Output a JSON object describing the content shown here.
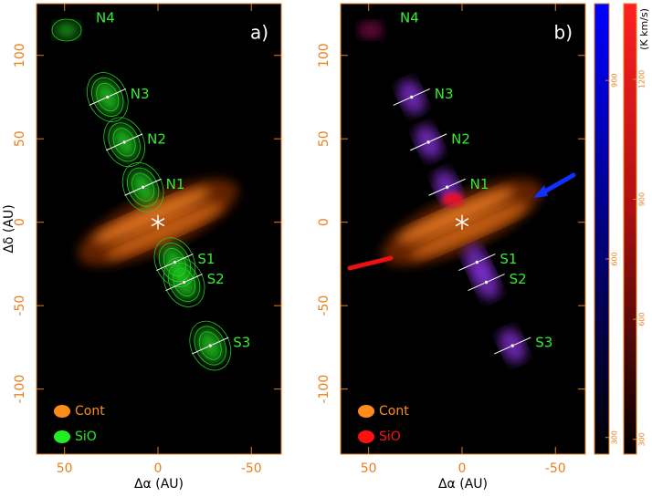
{
  "chart_data": [
    {
      "type": "image",
      "label": "a)",
      "xlabel": "Δα (AU)",
      "ylabel": "Δδ (AU)",
      "xlim": [
        65,
        -66
      ],
      "ylim": [
        -139,
        131
      ],
      "xticks": [
        50,
        0,
        -50
      ],
      "yticks": [
        100,
        50,
        0,
        -50,
        -100
      ],
      "sources": [
        {
          "name": "N3",
          "x": 27,
          "y": 75
        },
        {
          "name": "N2",
          "x": 18,
          "y": 48
        },
        {
          "name": "N1",
          "x": 8,
          "y": 21
        },
        {
          "name": "S1",
          "x": -9,
          "y": -24
        },
        {
          "name": "S2",
          "x": -14,
          "y": -36
        },
        {
          "name": "S3",
          "x": -28,
          "y": -74
        }
      ],
      "extra_label": "N4",
      "legend": [
        {
          "name": "Cont",
          "color": "#ff8c1a"
        },
        {
          "name": "SiO",
          "color": "#22ee22"
        }
      ]
    },
    {
      "type": "image",
      "label": "b)",
      "xlabel": "Δα (AU)",
      "xlim": [
        65,
        -66
      ],
      "ylim": [
        -139,
        131
      ],
      "xticks": [
        50,
        0,
        -50
      ],
      "yticks": [
        100,
        50,
        0,
        -50,
        -100
      ],
      "sources": [
        {
          "name": "N3",
          "x": 27,
          "y": 75
        },
        {
          "name": "N2",
          "x": 18,
          "y": 48
        },
        {
          "name": "N1",
          "x": 8,
          "y": 21
        },
        {
          "name": "S1",
          "x": -8,
          "y": -24
        },
        {
          "name": "S2",
          "x": -13,
          "y": -36
        },
        {
          "name": "S3",
          "x": -27,
          "y": -74
        }
      ],
      "extra_label": "N4",
      "legend": [
        {
          "name": "Cont",
          "color": "#ff8c1a"
        },
        {
          "name": "SiO",
          "color": "#ff1010"
        }
      ]
    }
  ],
  "colorbars": [
    {
      "color": "#0000ff",
      "lim": [
        272,
        1029
      ],
      "ticks": [
        300,
        600,
        900
      ]
    },
    {
      "color": "#e01010",
      "lim": [
        263,
        1389
      ],
      "ticks": [
        300,
        600,
        900,
        1200
      ],
      "label": "(K km/s)"
    }
  ]
}
